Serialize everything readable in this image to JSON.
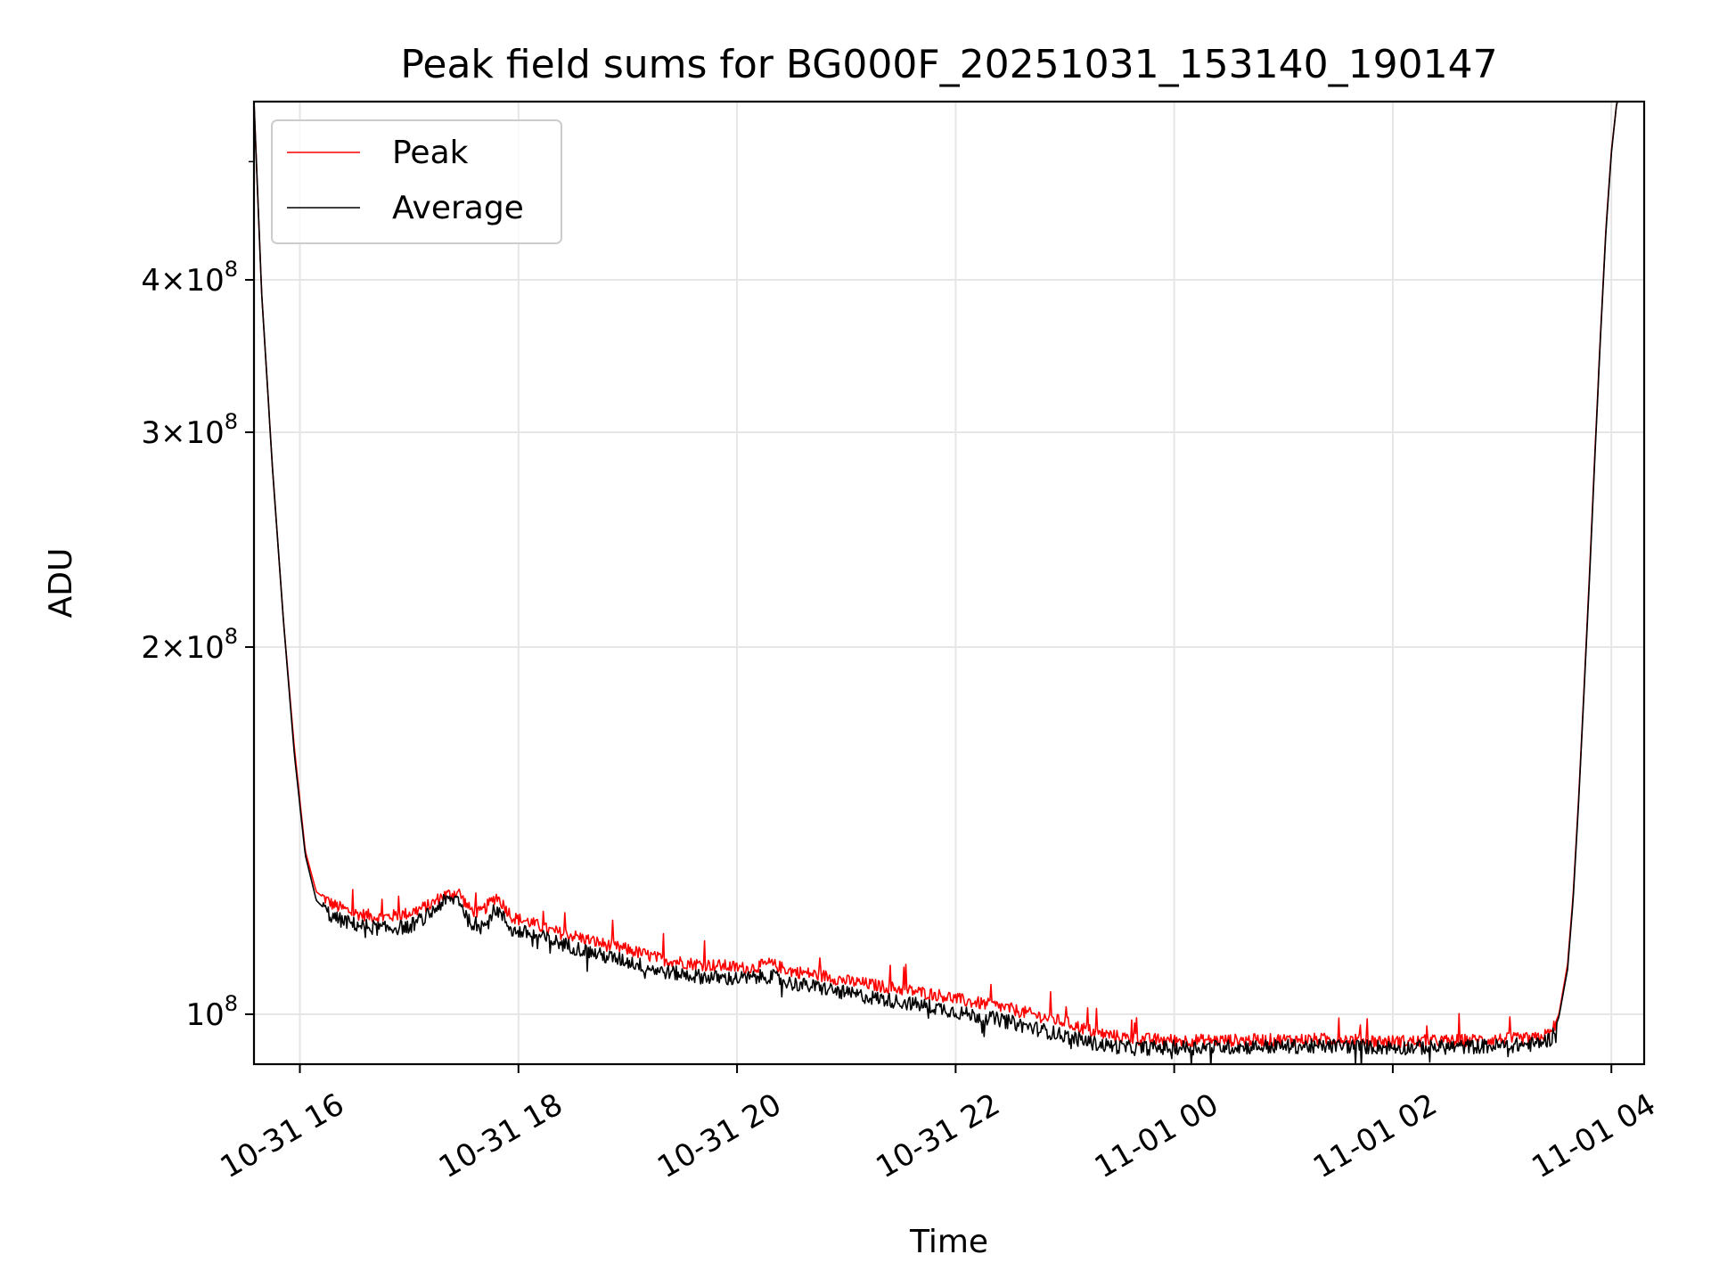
{
  "chart_data": {
    "type": "line",
    "title": "Peak field sums for BG000F_20251031_153140_190147",
    "xlabel": "Time",
    "ylabel": "ADU",
    "yscale": "log",
    "ylim": [
      91000000,
      560000000
    ],
    "x_unit": "hours since 2025-10-31 00:00",
    "xlim": [
      15.58,
      28.3
    ],
    "grid": true,
    "legend_position": "top-left",
    "x_ticks": [
      {
        "value": 16,
        "label": "10-31 16"
      },
      {
        "value": 18,
        "label": "10-31 18"
      },
      {
        "value": 20,
        "label": "10-31 20"
      },
      {
        "value": 22,
        "label": "10-31 22"
      },
      {
        "value": 24,
        "label": "11-01 00"
      },
      {
        "value": 26,
        "label": "11-01 02"
      },
      {
        "value": 28,
        "label": "11-01 04"
      }
    ],
    "y_ticks": [
      {
        "value": 100000000,
        "label_mantissa": "10",
        "label_exponent": "8"
      },
      {
        "value": 200000000,
        "label_mantissa": "2×10",
        "label_exponent": "8"
      },
      {
        "value": 300000000,
        "label_mantissa": "3×10",
        "label_exponent": "8"
      },
      {
        "value": 400000000,
        "label_mantissa": "4×10",
        "label_exponent": "8"
      }
    ],
    "series": [
      {
        "name": "Peak",
        "color": "#ff0000",
        "x": [
          15.58,
          15.65,
          15.75,
          15.85,
          15.95,
          16.05,
          16.15,
          16.3,
          16.5,
          16.75,
          17.0,
          17.2,
          17.3,
          17.45,
          17.55,
          17.65,
          17.8,
          17.95,
          18.1,
          18.3,
          18.5,
          18.8,
          19.0,
          19.3,
          19.6,
          19.9,
          20.1,
          20.3,
          20.5,
          20.8,
          21.0,
          21.3,
          21.6,
          21.9,
          22.1,
          22.4,
          22.7,
          23.0,
          23.3,
          23.6,
          24.0,
          24.5,
          25.0,
          25.5,
          26.0,
          26.5,
          27.0,
          27.3,
          27.45,
          27.52,
          27.6,
          27.65,
          27.7,
          27.75,
          27.8,
          27.85,
          27.9,
          27.95,
          28.0,
          28.05,
          28.1
        ],
        "values": [
          560000000,
          390000000,
          280000000,
          210000000,
          165000000,
          136000000,
          126000000,
          123000000,
          121000000,
          120000000,
          121000000,
          123000000,
          125000000,
          126000000,
          122000000,
          121000000,
          125000000,
          120000000,
          119000000,
          117000000,
          116000000,
          114000000,
          113000000,
          111000000,
          110000000,
          109500000,
          109000000,
          110000000,
          108500000,
          107500000,
          106500000,
          105500000,
          104500000,
          103500000,
          102500000,
          101500000,
          100000000,
          98500000,
          96500000,
          95500000,
          95200000,
          95200000,
          95300000,
          95400000,
          95000000,
          95100000,
          95400000,
          95500000,
          96500000,
          100000000,
          110000000,
          125000000,
          150000000,
          185000000,
          230000000,
          290000000,
          360000000,
          440000000,
          510000000,
          560000000,
          560000000
        ]
      },
      {
        "name": "Average",
        "color": "#000000",
        "x": [
          15.58,
          15.65,
          15.75,
          15.85,
          15.95,
          16.05,
          16.15,
          16.3,
          16.5,
          16.75,
          17.0,
          17.2,
          17.3,
          17.45,
          17.55,
          17.65,
          17.8,
          17.95,
          18.1,
          18.3,
          18.5,
          18.8,
          19.0,
          19.3,
          19.6,
          19.9,
          20.1,
          20.3,
          20.5,
          20.8,
          21.0,
          21.3,
          21.6,
          21.9,
          22.1,
          22.4,
          22.7,
          23.0,
          23.3,
          23.6,
          24.0,
          24.5,
          25.0,
          25.5,
          26.0,
          26.5,
          27.0,
          27.3,
          27.45,
          27.52,
          27.6,
          27.65,
          27.7,
          27.75,
          27.8,
          27.85,
          27.9,
          27.95,
          28.0,
          28.05,
          28.1
        ],
        "values": [
          560000000,
          390000000,
          280000000,
          210000000,
          163000000,
          135000000,
          124000000,
          120000000,
          118500000,
          117500000,
          118000000,
          121000000,
          123500000,
          124500000,
          119000000,
          118500000,
          122000000,
          117000000,
          116500000,
          115000000,
          113500000,
          111500000,
          110500000,
          108500000,
          107500000,
          107000000,
          107000000,
          107500000,
          106000000,
          105000000,
          104000000,
          103000000,
          102000000,
          101000000,
          100000000,
          99000000,
          97500000,
          96000000,
          94500000,
          93800000,
          93900000,
          94000000,
          94100000,
          94200000,
          93900000,
          94000000,
          94200000,
          94500000,
          95500000,
          99500000,
          109000000,
          124000000,
          149000000,
          184000000,
          228000000,
          288000000,
          358000000,
          438000000,
          508000000,
          560000000,
          560000000
        ]
      }
    ]
  }
}
